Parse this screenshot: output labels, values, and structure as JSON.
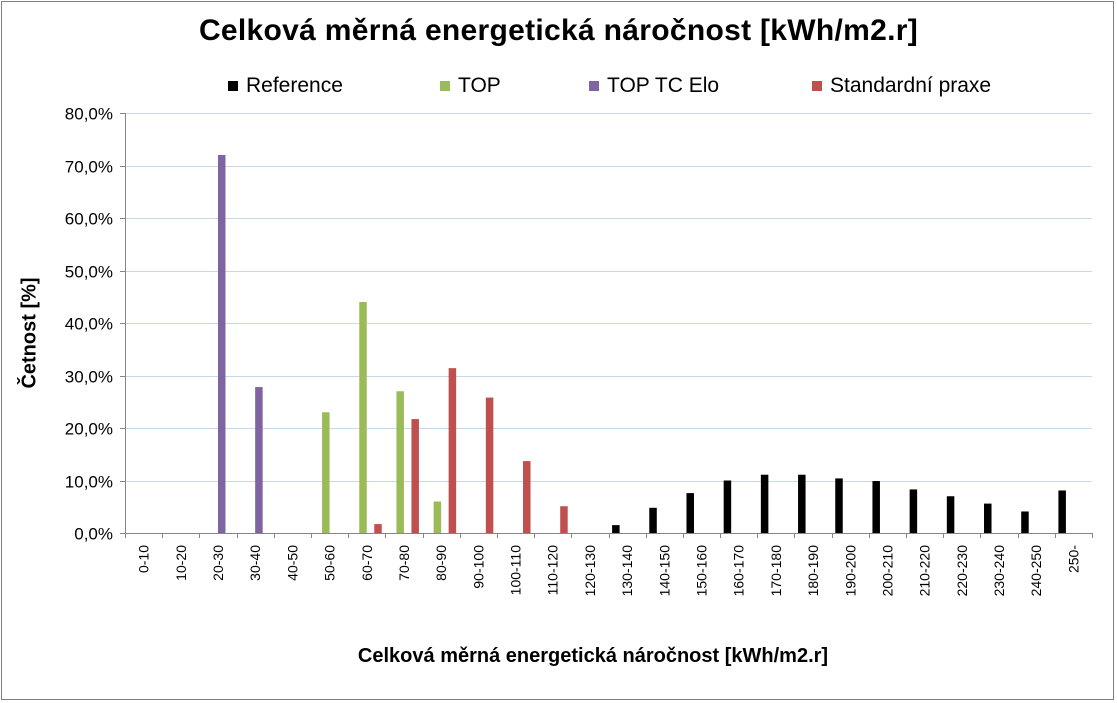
{
  "chart_data": {
    "type": "bar",
    "title": "Celková měrná energetická náročnost [kWh/m2.r]",
    "xlabel": "Celková měrná energetická náročnost [kWh/m2.r]",
    "ylabel": "Četnost [%]",
    "ylim": [
      0,
      80
    ],
    "yticks": [
      "0,0%",
      "10,0%",
      "20,0%",
      "30,0%",
      "40,0%",
      "50,0%",
      "60,0%",
      "70,0%",
      "80,0%"
    ],
    "grid": true,
    "legend_position": "top",
    "categories": [
      "0-10",
      "10-20",
      "20-30",
      "30-40",
      "40-50",
      "50-60",
      "60-70",
      "70-80",
      "80-90",
      "90-100",
      "100-110",
      "110-120",
      "120-130",
      "130-140",
      "140-150",
      "150-160",
      "160-170",
      "170-180",
      "180-190",
      "190-200",
      "200-210",
      "210-220",
      "220-230",
      "230-240",
      "240-250",
      "250-"
    ],
    "series": [
      {
        "name": "Reference",
        "color": "#000000",
        "values": [
          0,
          0,
          0,
          0,
          0,
          0,
          0,
          0,
          0,
          0,
          0,
          0,
          0,
          1.5,
          4.8,
          7.6,
          10.0,
          11.1,
          11.1,
          10.4,
          9.9,
          8.3,
          7.0,
          5.6,
          4.1,
          8.1
        ]
      },
      {
        "name": "TOP",
        "color": "#9bbb59",
        "values": [
          0,
          0,
          0,
          0,
          0,
          23.0,
          44.0,
          27.0,
          6.0,
          0,
          0,
          0,
          0,
          0,
          0,
          0,
          0,
          0,
          0,
          0,
          0,
          0,
          0,
          0,
          0,
          0
        ]
      },
      {
        "name": "TOP TC Elo",
        "color": "#8064a2",
        "values": [
          0,
          0,
          72.0,
          27.8,
          0,
          0,
          0,
          0,
          0,
          0,
          0,
          0,
          0,
          0,
          0,
          0,
          0,
          0,
          0,
          0,
          0,
          0,
          0,
          0,
          0,
          0
        ]
      },
      {
        "name": "Standardní praxe",
        "color": "#c0504d",
        "values": [
          0,
          0,
          0,
          0,
          0,
          0,
          1.7,
          21.7,
          31.4,
          25.8,
          13.7,
          5.1,
          0,
          0,
          0,
          0,
          0,
          0,
          0,
          0,
          0,
          0,
          0,
          0,
          0,
          0
        ]
      }
    ]
  },
  "colors": {
    "grid": "#c6d9e9",
    "axis": "#868686",
    "frame": "#7f7f7f"
  }
}
